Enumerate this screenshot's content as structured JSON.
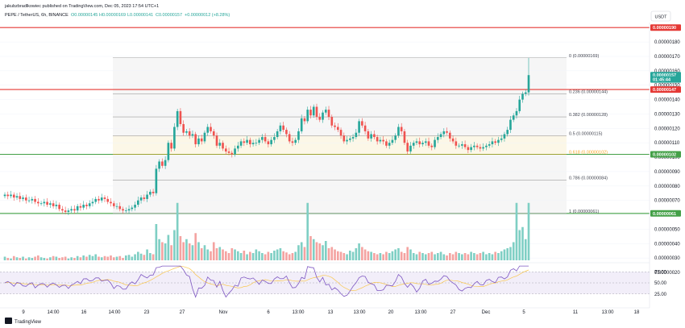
{
  "header": {
    "publisher": "jakubzbradlkowiec published on TradingView.com, Dec 05, 2023 17:54 UTC+1",
    "symbol": "PEPE / TetherUS, 6h, BINANCE",
    "ohlc": {
      "o": "O0.00000145",
      "h": "H0.00000169",
      "l": "L0.00000141",
      "c": "C0.00000157",
      "chg": "+0.00000012 (+8.28%)"
    }
  },
  "currency_label": "USDT",
  "footer_logo": "TradingView",
  "colors": {
    "up": "#26a69a",
    "down": "#ef5350",
    "resistance": "#e53935",
    "support": "#43a047",
    "rsi": "#7e57c2",
    "fib_band": "#eeeeee"
  },
  "chart_data": {
    "type": "candlestick",
    "y_axis": {
      "ticks": [
        "0.00000180",
        "0.00000170",
        "0.00000160",
        "0.00000150",
        "0.00000140",
        "0.00000130",
        "0.00000120",
        "0.00000110",
        "0.00000100",
        "0.00000090",
        "0.00000080",
        "0.00000070",
        "0.00000060",
        "0.00000050",
        "0.00000040",
        "0.00000030",
        "0.00000020"
      ],
      "tick_values": [
        180,
        170,
        160,
        150,
        140,
        130,
        120,
        110,
        100,
        90,
        80,
        70,
        60,
        50,
        40,
        30,
        20
      ]
    },
    "x_axis": {
      "ticks": [
        "9",
        "14:00",
        "16",
        "14:00",
        "23",
        "27",
        "Nov",
        "6",
        "13:00",
        "13",
        "13:00",
        "20",
        "13:00",
        "27",
        "Dec",
        "5",
        "11",
        "13:00",
        "18"
      ]
    },
    "price_tags": [
      {
        "label": "0.00000190",
        "value": 190,
        "color": "#e53935"
      },
      {
        "label": "0.00000157",
        "value": 157,
        "color": "#26a69a"
      },
      {
        "label": "01:45:44",
        "value": 154,
        "color": "#26a69a"
      },
      {
        "label": "0.00000147",
        "value": 147,
        "color": "#e53935"
      },
      {
        "label": "0.00000102",
        "value": 102,
        "color": "#43a047"
      },
      {
        "label": "0.00000061",
        "value": 61,
        "color": "#43a047"
      }
    ],
    "horizontal_lines": [
      {
        "value": 190,
        "color": "#e53935"
      },
      {
        "value": 147,
        "color": "#e53935"
      },
      {
        "value": 102,
        "color": "#43a047"
      },
      {
        "value": 61,
        "color": "#43a047"
      }
    ],
    "fib_levels": [
      {
        "label": "0 (0.00000169)",
        "value": 169
      },
      {
        "label": "0.236 (0.00000144)",
        "value": 144
      },
      {
        "label": "0.382 (0.00000128)",
        "value": 128
      },
      {
        "label": "0.5 (0.00000115)",
        "value": 115
      },
      {
        "label": "0.618 (0.00000102)",
        "value": 102
      },
      {
        "label": "0.786 (0.00000084)",
        "value": 84
      },
      {
        "label": "1 (0.00000061)",
        "value": 61
      }
    ],
    "closes": [
      74,
      73,
      74,
      72,
      73,
      71,
      72,
      70,
      70,
      71,
      69,
      68,
      68,
      69,
      67,
      68,
      66,
      67,
      64,
      63,
      62,
      63,
      64,
      63,
      66,
      65,
      67,
      66,
      68,
      69,
      71,
      70,
      72,
      71,
      69,
      68,
      66,
      66,
      64,
      63,
      63,
      64,
      65,
      67,
      70,
      72,
      71,
      74,
      76,
      75,
      92,
      97,
      94,
      98,
      110,
      106,
      121,
      132,
      123,
      117,
      118,
      115,
      116,
      109,
      113,
      111,
      117,
      121,
      118,
      115,
      108,
      110,
      106,
      104,
      103,
      102,
      106,
      108,
      111,
      110,
      112,
      109,
      110,
      110,
      112,
      114,
      111,
      109,
      112,
      114,
      118,
      122,
      119,
      116,
      111,
      110,
      112,
      118,
      127,
      125,
      133,
      129,
      135,
      128,
      126,
      131,
      133,
      128,
      122,
      121,
      119,
      115,
      111,
      112,
      113,
      114,
      117,
      125,
      122,
      118,
      113,
      116,
      114,
      111,
      112,
      111,
      108,
      110,
      112,
      115,
      121,
      118,
      110,
      104,
      108,
      110,
      111,
      109,
      110,
      111,
      108,
      107,
      112,
      114,
      116,
      118,
      117,
      113,
      111,
      108,
      108,
      109,
      107,
      105,
      107,
      108,
      107,
      106,
      107,
      108,
      109,
      111,
      110,
      112,
      113,
      116,
      119,
      126,
      129,
      132,
      140,
      144,
      145,
      157
    ],
    "volumes": [
      0.06,
      0.04,
      0.03,
      0.07,
      0.05,
      0.04,
      0.06,
      0.03,
      0.05,
      0.04,
      0.06,
      0.08,
      0.05,
      0.04,
      0.03,
      0.05,
      0.07,
      0.06,
      0.04,
      0.05,
      0.06,
      0.03,
      0.05,
      0.04,
      0.07,
      0.05,
      0.08,
      0.06,
      0.09,
      0.07,
      0.1,
      0.06,
      0.05,
      0.07,
      0.06,
      0.08,
      0.05,
      0.06,
      0.07,
      0.04,
      0.08,
      0.09,
      0.06,
      0.1,
      0.14,
      0.11,
      0.09,
      0.18,
      0.12,
      0.1,
      0.6,
      0.35,
      0.3,
      0.28,
      0.42,
      0.25,
      0.5,
      0.95,
      0.4,
      0.3,
      0.35,
      0.28,
      0.25,
      0.45,
      0.3,
      0.2,
      0.25,
      0.18,
      0.15,
      0.3,
      0.2,
      0.22,
      0.18,
      0.15,
      0.12,
      0.2,
      0.18,
      0.15,
      0.12,
      0.16,
      0.1,
      0.14,
      0.12,
      0.18,
      0.15,
      0.12,
      0.1,
      0.14,
      0.12,
      0.16,
      0.18,
      0.2,
      0.15,
      0.13,
      0.1,
      0.12,
      0.14,
      0.25,
      0.3,
      0.22,
      0.95,
      0.4,
      0.35,
      0.3,
      0.28,
      0.25,
      0.32,
      0.2,
      0.22,
      0.18,
      0.15,
      0.14,
      0.12,
      0.1,
      0.16,
      0.14,
      0.2,
      0.28,
      0.22,
      0.18,
      0.15,
      0.14,
      0.12,
      0.1,
      0.12,
      0.1,
      0.14,
      0.12,
      0.15,
      0.18,
      0.2,
      0.14,
      0.12,
      0.22,
      0.18,
      0.12,
      0.1,
      0.14,
      0.12,
      0.1,
      0.12,
      0.14,
      0.1,
      0.12,
      0.14,
      0.1,
      0.08,
      0.12,
      0.1,
      0.14,
      0.12,
      0.1,
      0.12,
      0.1,
      0.14,
      0.12,
      0.1,
      0.12,
      0.14,
      0.1,
      0.12,
      0.1,
      0.14,
      0.12,
      0.15,
      0.18,
      0.2,
      0.22,
      0.3,
      0.95,
      0.5,
      0.55,
      0.35,
      0.95
    ],
    "rsi": {
      "ticks": [
        "75.00",
        "50.00",
        "25.00"
      ],
      "tick_values": [
        75,
        50,
        25
      ],
      "overbought": 75,
      "oversold": 25
    }
  }
}
